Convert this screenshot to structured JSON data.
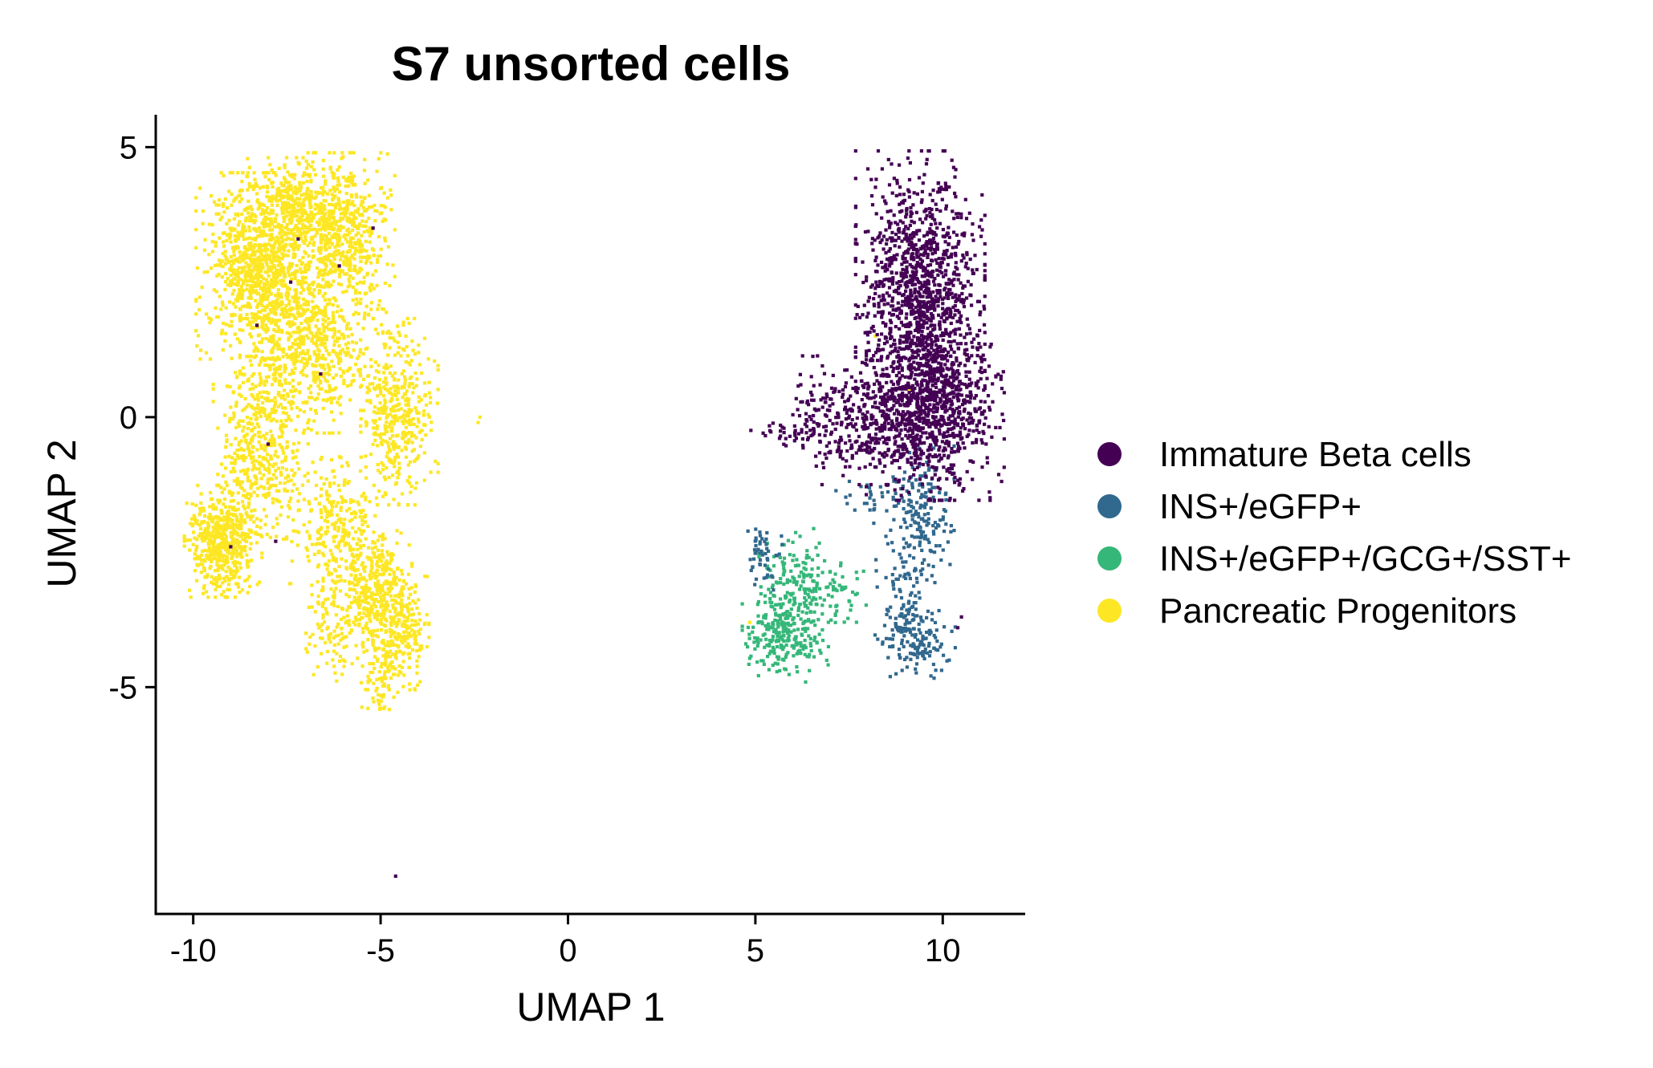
{
  "chart_data": {
    "type": "scatter",
    "title": "S7 unsorted cells",
    "xlabel": "UMAP 1",
    "ylabel": "UMAP 2",
    "xlim": [
      -11,
      12.2
    ],
    "ylim": [
      -9.2,
      5.6
    ],
    "xticks": [
      -10,
      -5,
      0,
      5,
      10
    ],
    "xtick_labels": [
      "-10",
      "-5",
      "0",
      "5",
      "10"
    ],
    "yticks": [
      -5,
      0,
      5
    ],
    "ytick_labels": [
      "-5",
      "0",
      "5"
    ],
    "grid": false,
    "legend_position": "right",
    "series": [
      {
        "name": "Immature Beta cells",
        "color": "#440154",
        "clusters": [
          {
            "cx": 9.4,
            "cy": 2.4,
            "sx": 0.75,
            "sy": 1.1,
            "n": 1100
          },
          {
            "cx": 9.8,
            "cy": 0.3,
            "sx": 0.8,
            "sy": 0.8,
            "n": 900
          },
          {
            "cx": 8.4,
            "cy": -0.1,
            "sx": 0.8,
            "sy": 0.5,
            "n": 350
          },
          {
            "cx": 7.0,
            "cy": 0.1,
            "sx": 0.55,
            "sy": 0.45,
            "n": 120
          },
          {
            "cx": 5.8,
            "cy": -0.3,
            "sx": 0.4,
            "sy": 0.1,
            "n": 30
          }
        ],
        "points": [
          [
            -4.6,
            -8.5
          ],
          [
            10.5,
            -3.7
          ],
          [
            10.4,
            -3.9
          ],
          [
            -7.2,
            3.3
          ],
          [
            -6.1,
            2.8
          ],
          [
            -8.3,
            1.7
          ],
          [
            -7.8,
            -2.3
          ],
          [
            -9.0,
            -2.4
          ],
          [
            -6.6,
            0.8
          ],
          [
            -5.2,
            3.5
          ],
          [
            -7.4,
            2.5
          ],
          [
            -8.0,
            -0.5
          ]
        ]
      },
      {
        "name": "INS+/eGFP+",
        "color": "#31688e",
        "clusters": [
          {
            "cx": 9.5,
            "cy": -1.8,
            "sx": 0.35,
            "sy": 0.55,
            "n": 160
          },
          {
            "cx": 9.3,
            "cy": -4.1,
            "sx": 0.45,
            "sy": 0.35,
            "n": 150
          },
          {
            "cx": 9.0,
            "cy": -3.0,
            "sx": 0.35,
            "sy": 0.45,
            "n": 70
          },
          {
            "cx": 5.2,
            "cy": -2.6,
            "sx": 0.25,
            "sy": 0.3,
            "n": 50
          },
          {
            "cx": 8.3,
            "cy": -1.5,
            "sx": 0.5,
            "sy": 0.25,
            "n": 40
          }
        ],
        "points": []
      },
      {
        "name": "INS+/eGFP+/GCG+/SST+",
        "color": "#35b779",
        "clusters": [
          {
            "cx": 6.1,
            "cy": -3.1,
            "sx": 0.45,
            "sy": 0.45,
            "n": 180
          },
          {
            "cx": 5.8,
            "cy": -4.1,
            "sx": 0.5,
            "sy": 0.35,
            "n": 220
          },
          {
            "cx": 7.3,
            "cy": -3.3,
            "sx": 0.35,
            "sy": 0.3,
            "n": 40
          }
        ],
        "points": []
      },
      {
        "name": "Pancreatic Progenitors",
        "color": "#fde725",
        "clusters": [
          {
            "cx": -8.2,
            "cy": 2.8,
            "sx": 0.75,
            "sy": 0.75,
            "n": 1000
          },
          {
            "cx": -6.0,
            "cy": 3.4,
            "sx": 0.6,
            "sy": 0.65,
            "n": 600
          },
          {
            "cx": -7.4,
            "cy": 4.0,
            "sx": 0.5,
            "sy": 0.35,
            "n": 250
          },
          {
            "cx": -6.8,
            "cy": 1.2,
            "sx": 0.85,
            "sy": 0.65,
            "n": 600
          },
          {
            "cx": -4.5,
            "cy": 0.1,
            "sx": 0.45,
            "sy": 0.75,
            "n": 400
          },
          {
            "cx": -8.2,
            "cy": -0.6,
            "sx": 0.55,
            "sy": 0.75,
            "n": 450
          },
          {
            "cx": -9.2,
            "cy": -2.3,
            "sx": 0.45,
            "sy": 0.45,
            "n": 550
          },
          {
            "cx": -6.2,
            "cy": -2.0,
            "sx": 0.55,
            "sy": 0.55,
            "n": 250
          },
          {
            "cx": -5.2,
            "cy": -3.3,
            "sx": 0.45,
            "sy": 0.55,
            "n": 400
          },
          {
            "cx": -4.4,
            "cy": -3.9,
            "sx": 0.3,
            "sy": 0.5,
            "n": 200
          },
          {
            "cx": -5.0,
            "cy": -4.9,
            "sx": 0.25,
            "sy": 0.3,
            "n": 80
          },
          {
            "cx": -6.3,
            "cy": -3.8,
            "sx": 0.3,
            "sy": 0.6,
            "n": 100
          }
        ],
        "points": [
          [
            -2.4,
            -0.1
          ],
          [
            -2.35,
            0.0
          ],
          [
            8.2,
            1.5
          ],
          [
            9.1,
            0.5
          ],
          [
            8.6,
            1.6
          ],
          [
            4.85,
            -3.8
          ]
        ]
      }
    ]
  }
}
